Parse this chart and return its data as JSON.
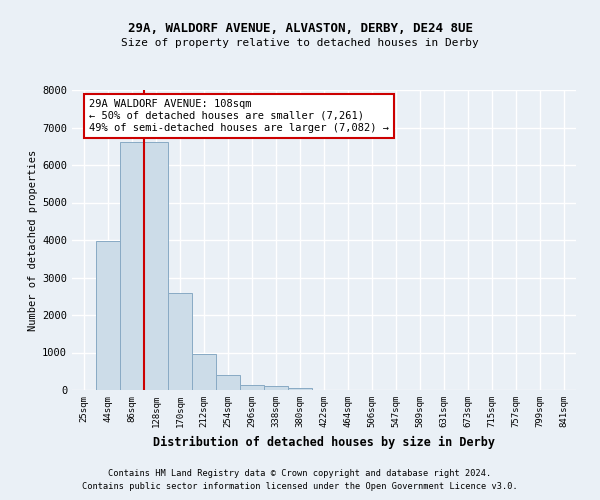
{
  "title1": "29A, WALDORF AVENUE, ALVASTON, DERBY, DE24 8UE",
  "title2": "Size of property relative to detached houses in Derby",
  "xlabel": "Distribution of detached houses by size in Derby",
  "ylabel": "Number of detached properties",
  "bin_labels": [
    "25sqm",
    "44sqm",
    "86sqm",
    "128sqm",
    "170sqm",
    "212sqm",
    "254sqm",
    "296sqm",
    "338sqm",
    "380sqm",
    "422sqm",
    "464sqm",
    "506sqm",
    "547sqm",
    "589sqm",
    "631sqm",
    "673sqm",
    "715sqm",
    "757sqm",
    "799sqm",
    "841sqm"
  ],
  "bar_heights": [
    5,
    3980,
    6620,
    6620,
    2580,
    950,
    390,
    145,
    95,
    60,
    5,
    0,
    0,
    0,
    0,
    0,
    0,
    0,
    0,
    0,
    0
  ],
  "bar_color": "#ccdce8",
  "bar_edge_color": "#88aac4",
  "ylim": [
    0,
    8000
  ],
  "yticks": [
    0,
    1000,
    2000,
    3000,
    4000,
    5000,
    6000,
    7000,
    8000
  ],
  "red_line_x": 2.5,
  "annotation_text": "29A WALDORF AVENUE: 108sqm\n← 50% of detached houses are smaller (7,261)\n49% of semi-detached houses are larger (7,082) →",
  "annotation_box_color": "#ffffff",
  "annotation_box_edge_color": "#cc0000",
  "red_line_color": "#cc0000",
  "footer1": "Contains HM Land Registry data © Crown copyright and database right 2024.",
  "footer2": "Contains public sector information licensed under the Open Government Licence v3.0.",
  "background_color": "#eaf0f6",
  "grid_color": "#ffffff",
  "plot_bg_color": "#eaf0f6"
}
